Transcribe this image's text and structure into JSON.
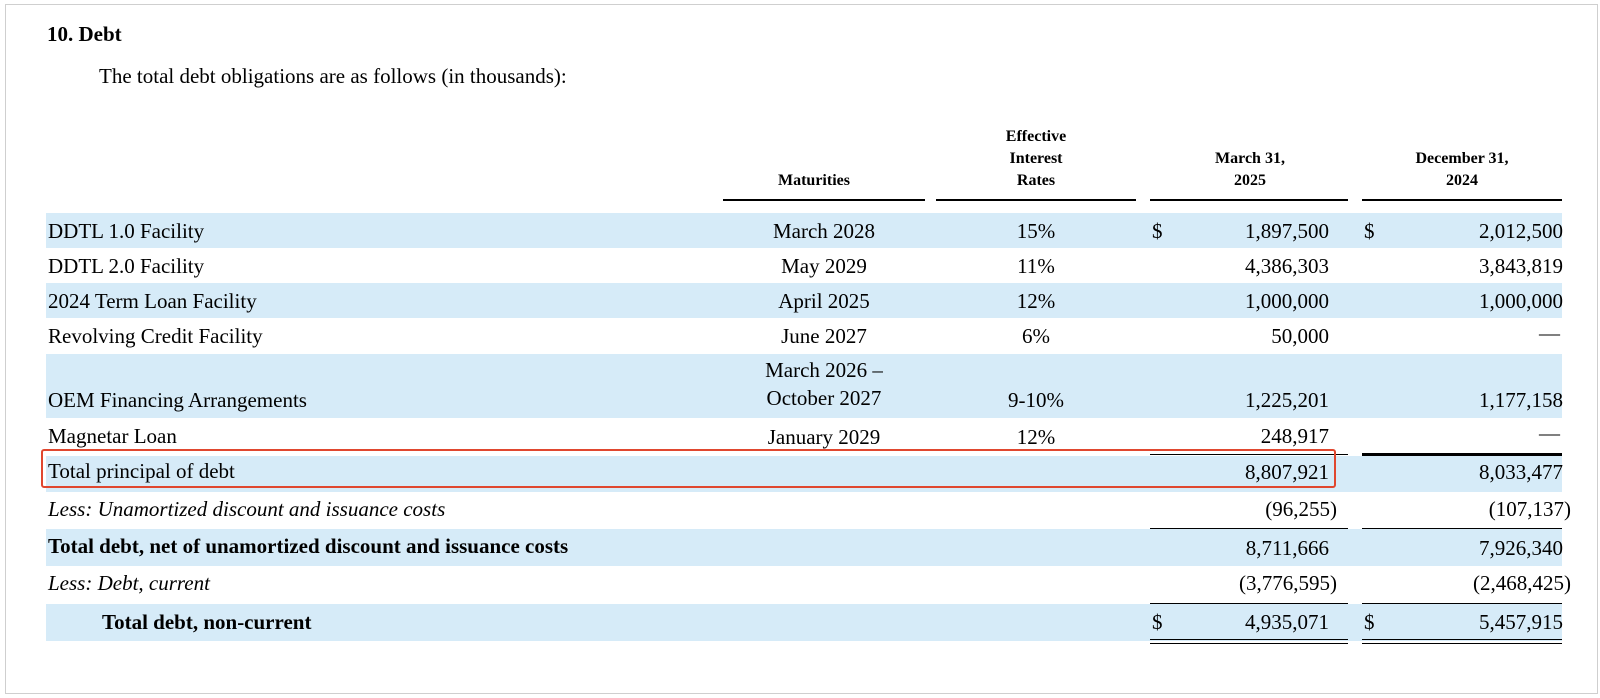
{
  "section_title": "10. Debt",
  "intro": "The total debt obligations are as follows (in thousands):",
  "headers": {
    "maturities": "Maturities",
    "rates_1": "Effective",
    "rates_2": "Interest",
    "rates_3": "Rates",
    "col1_1": "March 31,",
    "col1_2": "2025",
    "col2_1": "December 31,",
    "col2_2": "2024"
  },
  "currency_symbol": "$",
  "dash": "—",
  "rows": [
    {
      "label": "DDTL 1.0 Facility",
      "maturity": "March 2028",
      "rate": "15%",
      "mar2025": "1,897,500",
      "dec2024": "2,012,500"
    },
    {
      "label": "DDTL 2.0 Facility",
      "maturity": "May 2029",
      "rate": "11%",
      "mar2025": "4,386,303",
      "dec2024": "3,843,819"
    },
    {
      "label": "2024 Term Loan Facility",
      "maturity": "April 2025",
      "rate": "12%",
      "mar2025": "1,000,000",
      "dec2024": "1,000,000"
    },
    {
      "label": "Revolving Credit Facility",
      "maturity": "June 2027",
      "rate": "6%",
      "mar2025": "50,000",
      "dec2024": "—"
    },
    {
      "label": "OEM Financing Arrangements",
      "maturity_1": "March 2026 –",
      "maturity_2": "October 2027",
      "rate": "9-10%",
      "mar2025": "1,225,201",
      "dec2024": "1,177,158"
    },
    {
      "label": "Magnetar Loan",
      "maturity": "January 2029",
      "rate": "12%",
      "mar2025": "248,917",
      "dec2024": "—"
    },
    {
      "label": "Total principal of debt",
      "mar2025": "8,807,921",
      "dec2024": "8,033,477"
    },
    {
      "label": "Less: Unamortized discount and issuance costs",
      "mar2025": "(96,255)",
      "dec2024": "(107,137)"
    },
    {
      "label": "Total debt, net of unamortized discount and issuance costs",
      "mar2025": "8,711,666",
      "dec2024": "7,926,340"
    },
    {
      "label": "Less: Debt, current",
      "mar2025": "(3,776,595)",
      "dec2024": "(2,468,425)"
    },
    {
      "label": "Total debt, non-current",
      "mar2025": "4,935,071",
      "dec2024": "5,457,915"
    }
  ],
  "colors": {
    "row_highlight": "#d6ebf8",
    "callout_border": "#e0472f"
  }
}
